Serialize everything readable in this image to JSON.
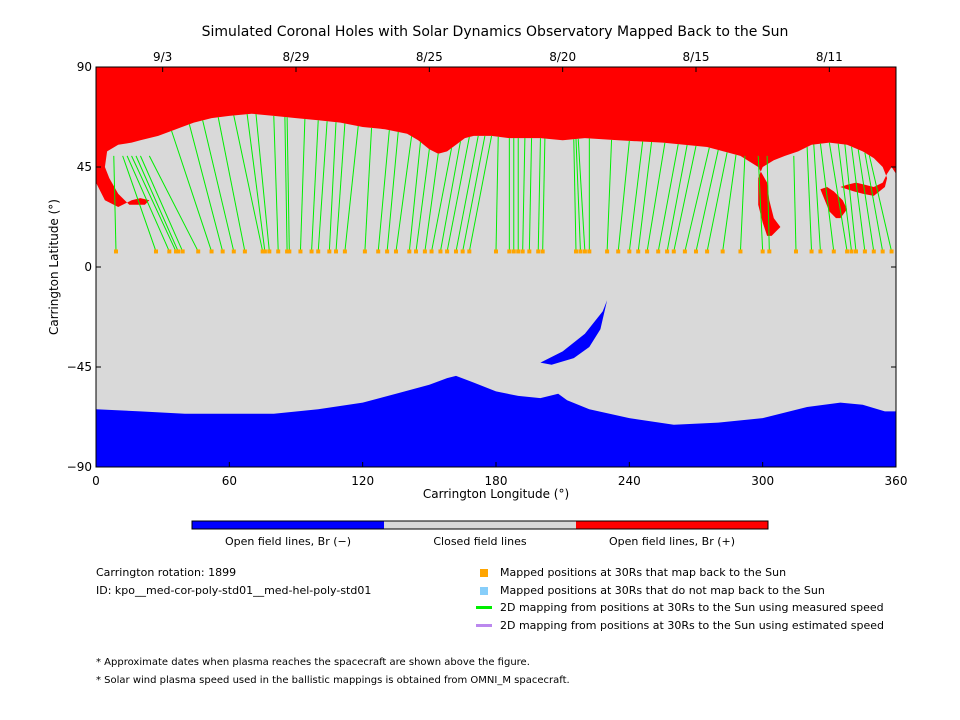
{
  "chart_data": {
    "type": "map",
    "title": "Simulated Coronal Holes with Solar Dynamics Observatory Mapped Back to the Sun",
    "xlabel": "Carrington Longitude (°)",
    "ylabel": "Carrington Latitude (°)",
    "xlim": [
      0,
      360
    ],
    "ylim": [
      -90,
      90
    ],
    "x_ticks": [
      0,
      60,
      120,
      180,
      240,
      300,
      360
    ],
    "y_ticks": [
      -90,
      -45,
      0,
      45,
      90
    ],
    "y_tick_labels": [
      "−90",
      "−45",
      "0",
      "45",
      "90"
    ],
    "top_date_ticks": [
      {
        "label": "9/3",
        "lon": 30
      },
      {
        "label": "8/29",
        "lon": 90
      },
      {
        "label": "8/25",
        "lon": 150
      },
      {
        "label": "8/20",
        "lon": 210
      },
      {
        "label": "8/15",
        "lon": 270
      },
      {
        "label": "8/11",
        "lon": 330
      }
    ],
    "regions": [
      {
        "name": "Open field lines, Br (−)",
        "color": "#0000ff"
      },
      {
        "name": "Closed field lines",
        "color": "#d9d9d9"
      },
      {
        "name": "Open field lines, Br (+)",
        "color": "#ff0000"
      }
    ],
    "north_boundary": [
      [
        0,
        38
      ],
      [
        4,
        30
      ],
      [
        10,
        27
      ],
      [
        16,
        30
      ],
      [
        20,
        31
      ],
      [
        24,
        30
      ],
      [
        22,
        28
      ],
      [
        15,
        28
      ],
      [
        10,
        33
      ],
      [
        6,
        40
      ],
      [
        4,
        45
      ],
      [
        5,
        52
      ],
      [
        10,
        55
      ],
      [
        16,
        56
      ],
      [
        20,
        57
      ],
      [
        28,
        59
      ],
      [
        36,
        62
      ],
      [
        44,
        65
      ],
      [
        52,
        67
      ],
      [
        60,
        68
      ],
      [
        70,
        69
      ],
      [
        80,
        68
      ],
      [
        90,
        67
      ],
      [
        100,
        66
      ],
      [
        110,
        65
      ],
      [
        120,
        63
      ],
      [
        130,
        62
      ],
      [
        140,
        60
      ],
      [
        145,
        57
      ],
      [
        150,
        53
      ],
      [
        154,
        51
      ],
      [
        158,
        52
      ],
      [
        162,
        55
      ],
      [
        166,
        58
      ],
      [
        170,
        59
      ],
      [
        178,
        59
      ],
      [
        186,
        58
      ],
      [
        200,
        58
      ],
      [
        210,
        57
      ],
      [
        220,
        58
      ],
      [
        235,
        57
      ],
      [
        255,
        56
      ],
      [
        275,
        54
      ],
      [
        290,
        50
      ],
      [
        298,
        45
      ],
      [
        302,
        38
      ],
      [
        303,
        30
      ],
      [
        305,
        22
      ],
      [
        308,
        18
      ],
      [
        314,
        15
      ],
      [
        308,
        18
      ],
      [
        304,
        14
      ],
      [
        302,
        14
      ],
      [
        300,
        20
      ],
      [
        298,
        28
      ],
      [
        298,
        40
      ],
      [
        300,
        45
      ],
      [
        305,
        48
      ],
      [
        310,
        50
      ],
      [
        316,
        52
      ],
      [
        322,
        55
      ],
      [
        330,
        56
      ],
      [
        338,
        55
      ],
      [
        345,
        52
      ],
      [
        350,
        49
      ],
      [
        354,
        45
      ],
      [
        356,
        40
      ],
      [
        355,
        36
      ],
      [
        350,
        32
      ],
      [
        345,
        33
      ],
      [
        341,
        34
      ],
      [
        338,
        35
      ],
      [
        335,
        36
      ],
      [
        338,
        37
      ],
      [
        342,
        38
      ],
      [
        346,
        37
      ],
      [
        350,
        36
      ],
      [
        354,
        38
      ],
      [
        356,
        42
      ],
      [
        358,
        45
      ],
      [
        360,
        42
      ]
    ],
    "south_boundary": [
      [
        0,
        -64
      ],
      [
        20,
        -65
      ],
      [
        40,
        -66
      ],
      [
        60,
        -66
      ],
      [
        80,
        -66
      ],
      [
        100,
        -64
      ],
      [
        120,
        -61
      ],
      [
        135,
        -57
      ],
      [
        150,
        -53
      ],
      [
        158,
        -50
      ],
      [
        162,
        -49
      ],
      [
        170,
        -52
      ],
      [
        180,
        -56
      ],
      [
        190,
        -58
      ],
      [
        200,
        -59
      ],
      [
        208,
        -57
      ],
      [
        212,
        -60
      ],
      [
        222,
        -64
      ],
      [
        240,
        -68
      ],
      [
        260,
        -71
      ],
      [
        280,
        -70
      ],
      [
        300,
        -68
      ],
      [
        320,
        -63
      ],
      [
        335,
        -61
      ],
      [
        345,
        -62
      ],
      [
        355,
        -65
      ],
      [
        360,
        -65
      ]
    ],
    "island_neg": [
      [
        200,
        -43
      ],
      [
        210,
        -38
      ],
      [
        220,
        -30
      ],
      [
        228,
        -20
      ],
      [
        230,
        -15
      ],
      [
        227,
        -28
      ],
      [
        222,
        -36
      ],
      [
        215,
        -41
      ],
      [
        205,
        -44
      ]
    ],
    "island_pos": [
      [
        326,
        35
      ],
      [
        330,
        25
      ],
      [
        333,
        22
      ],
      [
        335,
        22
      ],
      [
        338,
        26
      ],
      [
        336,
        30
      ],
      [
        332,
        34
      ],
      [
        329,
        36
      ]
    ],
    "mapped_positions": [
      {
        "lat": 7,
        "lons": [
          9,
          27,
          33,
          36,
          37,
          39,
          46,
          52,
          57,
          62,
          67,
          75,
          76,
          78,
          82,
          86,
          87,
          92,
          97,
          100,
          105,
          108,
          112,
          121,
          127,
          131,
          135,
          141,
          144,
          148,
          151,
          155,
          158,
          162,
          165,
          168,
          180,
          186,
          188,
          190,
          192,
          195,
          199,
          201,
          216,
          218,
          220,
          222,
          230,
          235,
          240,
          244,
          248,
          253,
          257,
          260,
          265,
          270,
          275,
          282,
          290,
          300,
          303,
          315,
          322,
          326,
          332,
          338,
          340,
          342,
          346,
          350,
          354,
          358
        ]
      }
    ],
    "mapping_lines": [
      {
        "lon_top": 8,
        "lon_bottom": 9
      },
      {
        "lon_top": 12,
        "lon_bottom": 27
      },
      {
        "lon_top": 14,
        "lon_bottom": 33
      },
      {
        "lon_top": 16,
        "lon_bottom": 36
      },
      {
        "lon_top": 18,
        "lon_bottom": 37
      },
      {
        "lon_top": 20,
        "lon_bottom": 39
      },
      {
        "lon_top": 24,
        "lon_bottom": 46
      },
      {
        "lon_top": 34,
        "lon_bottom": 52
      },
      {
        "lon_top": 42,
        "lon_bottom": 57
      },
      {
        "lon_top": 48,
        "lon_bottom": 62
      },
      {
        "lon_top": 55,
        "lon_bottom": 67
      },
      {
        "lon_top": 62,
        "lon_bottom": 75
      },
      {
        "lon_top": 68,
        "lon_bottom": 76
      },
      {
        "lon_top": 72,
        "lon_bottom": 78
      },
      {
        "lon_top": 80,
        "lon_bottom": 82
      },
      {
        "lon_top": 85,
        "lon_bottom": 86
      },
      {
        "lon_top": 86,
        "lon_bottom": 87
      },
      {
        "lon_top": 94,
        "lon_bottom": 92
      },
      {
        "lon_top": 100,
        "lon_bottom": 97
      },
      {
        "lon_top": 104,
        "lon_bottom": 100
      },
      {
        "lon_top": 108,
        "lon_bottom": 105
      },
      {
        "lon_top": 112,
        "lon_bottom": 108
      },
      {
        "lon_top": 118,
        "lon_bottom": 112
      },
      {
        "lon_top": 124,
        "lon_bottom": 121
      },
      {
        "lon_top": 132,
        "lon_bottom": 127
      },
      {
        "lon_top": 136,
        "lon_bottom": 131
      },
      {
        "lon_top": 142,
        "lon_bottom": 135
      },
      {
        "lon_top": 146,
        "lon_bottom": 141
      },
      {
        "lon_top": 150,
        "lon_bottom": 144
      },
      {
        "lon_top": 154,
        "lon_bottom": 148
      },
      {
        "lon_top": 160,
        "lon_bottom": 151
      },
      {
        "lon_top": 164,
        "lon_bottom": 155
      },
      {
        "lon_top": 168,
        "lon_bottom": 158
      },
      {
        "lon_top": 172,
        "lon_bottom": 162
      },
      {
        "lon_top": 175,
        "lon_bottom": 165
      },
      {
        "lon_top": 178,
        "lon_bottom": 168
      },
      {
        "lon_top": 181,
        "lon_bottom": 180
      },
      {
        "lon_top": 186,
        "lon_bottom": 186
      },
      {
        "lon_top": 188,
        "lon_bottom": 188
      },
      {
        "lon_top": 190,
        "lon_bottom": 190
      },
      {
        "lon_top": 193,
        "lon_bottom": 192
      },
      {
        "lon_top": 196,
        "lon_bottom": 195
      },
      {
        "lon_top": 200,
        "lon_bottom": 199
      },
      {
        "lon_top": 202,
        "lon_bottom": 201
      },
      {
        "lon_top": 215,
        "lon_bottom": 216
      },
      {
        "lon_top": 216,
        "lon_bottom": 218
      },
      {
        "lon_top": 217,
        "lon_bottom": 220
      },
      {
        "lon_top": 222,
        "lon_bottom": 222
      },
      {
        "lon_top": 232,
        "lon_bottom": 230
      },
      {
        "lon_top": 240,
        "lon_bottom": 235
      },
      {
        "lon_top": 246,
        "lon_bottom": 240
      },
      {
        "lon_top": 250,
        "lon_bottom": 244
      },
      {
        "lon_top": 256,
        "lon_bottom": 248
      },
      {
        "lon_top": 262,
        "lon_bottom": 253
      },
      {
        "lon_top": 266,
        "lon_bottom": 257
      },
      {
        "lon_top": 270,
        "lon_bottom": 260
      },
      {
        "lon_top": 276,
        "lon_bottom": 265
      },
      {
        "lon_top": 280,
        "lon_bottom": 270
      },
      {
        "lon_top": 284,
        "lon_bottom": 275
      },
      {
        "lon_top": 288,
        "lon_bottom": 282
      },
      {
        "lon_top": 292,
        "lon_bottom": 290
      },
      {
        "lon_top": 298,
        "lon_bottom": 300
      },
      {
        "lon_top": 302,
        "lon_bottom": 303
      },
      {
        "lon_top": 314,
        "lon_bottom": 315
      },
      {
        "lon_top": 320,
        "lon_bottom": 322
      },
      {
        "lon_top": 323,
        "lon_bottom": 326
      },
      {
        "lon_top": 326,
        "lon_bottom": 332
      },
      {
        "lon_top": 330,
        "lon_bottom": 338
      },
      {
        "lon_top": 334,
        "lon_bottom": 340
      },
      {
        "lon_top": 337,
        "lon_bottom": 342
      },
      {
        "lon_top": 340,
        "lon_bottom": 346
      },
      {
        "lon_top": 343,
        "lon_bottom": 350
      },
      {
        "lon_top": 346,
        "lon_bottom": 354
      },
      {
        "lon_top": 348,
        "lon_bottom": 358
      }
    ],
    "colorbar_labels": [
      "Open field lines, Br (−)",
      "Closed field lines",
      "Open field lines, Br (+)"
    ]
  },
  "info": {
    "carrington_rotation": "Carrington rotation: 1899",
    "id": "ID: kpo__med-cor-poly-std01__med-hel-poly-std01"
  },
  "legend": {
    "items": [
      {
        "label": "Mapped positions at 30Rs that map back to the Sun",
        "color": "#ffa500"
      },
      {
        "label": "Mapped positions at 30Rs that do not map back to the Sun",
        "color": "#87cefa"
      },
      {
        "label": "2D mapping from positions at 30Rs to the Sun using measured speed",
        "color": "#00ee00"
      },
      {
        "label": "2D mapping from positions at 30Rs to the Sun using estimated speed",
        "color": "#bb88ee"
      }
    ]
  },
  "notes": [
    "* Approximate dates when plasma reaches the spacecraft are shown above the figure.",
    "* Solar wind plasma speed used in the ballistic mappings is obtained from OMNI_M spacecraft."
  ]
}
